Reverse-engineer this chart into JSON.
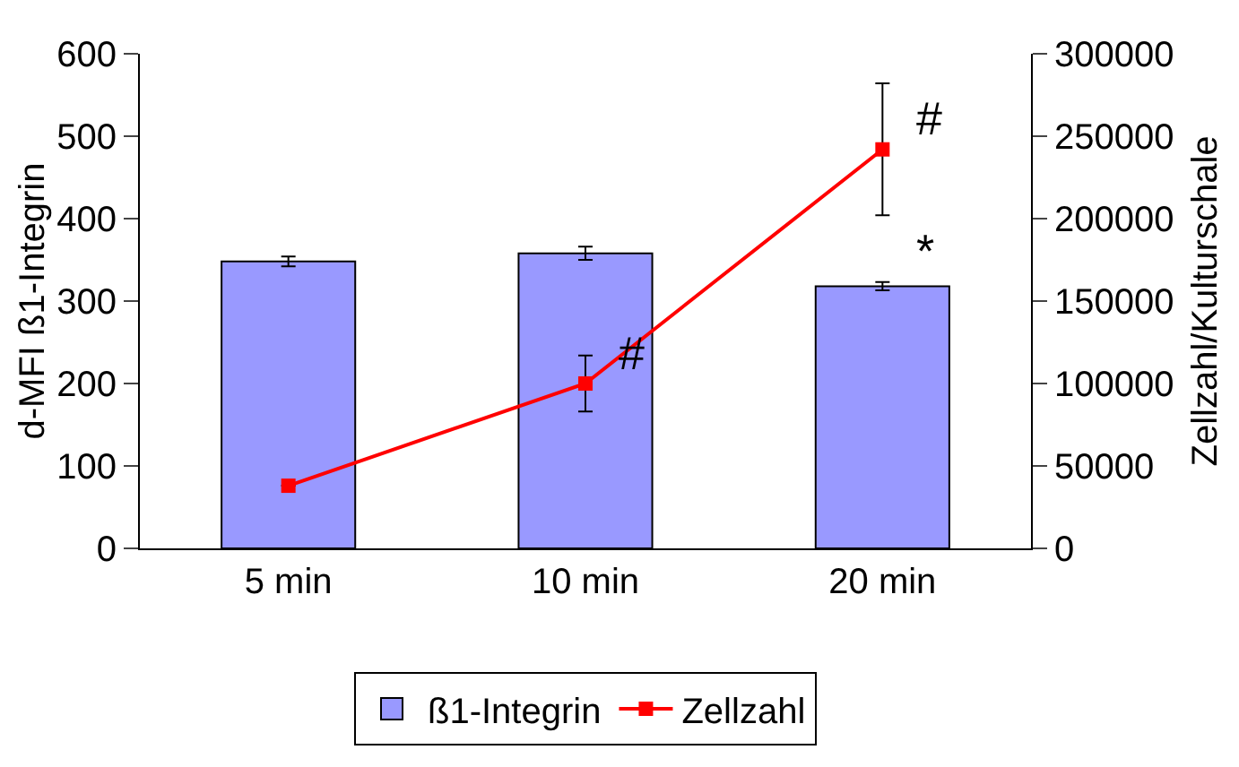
{
  "chart_data": {
    "type": "bar",
    "ylabel": "d-MFI ß1-Integrin",
    "y2label": "Zellzahl/Kulturschale",
    "categories": [
      "5 min",
      "10 min",
      "20 min"
    ],
    "series": [
      {
        "name": "ß1-Integrin",
        "color": "#9999ff",
        "values": [
          348,
          358,
          318
        ],
        "errors": [
          6,
          8,
          5
        ]
      },
      {
        "name": "Zellzahl",
        "type": "line",
        "axis": "y2",
        "color": "#ff0000",
        "values": [
          38000,
          100000,
          242000
        ],
        "errors": [
          null,
          17000,
          [
            40000,
            40000
          ]
        ]
      }
    ],
    "ylim": [
      0,
      600
    ],
    "yticks": [
      0,
      100,
      200,
      300,
      400,
      500,
      600
    ],
    "y2lim": [
      0,
      300000
    ],
    "y2ticks": [
      0,
      50000,
      100000,
      150000,
      200000,
      250000,
      300000
    ],
    "annotations": [
      {
        "text": "*",
        "x": "20 min",
        "y": 323
      },
      {
        "text": "#",
        "x": "10 min",
        "y": 200
      },
      {
        "text": "#",
        "x": "20 min",
        "y": 484
      }
    ],
    "marker": "square",
    "line_style": "solid",
    "grid": false,
    "legend": "bottom"
  }
}
